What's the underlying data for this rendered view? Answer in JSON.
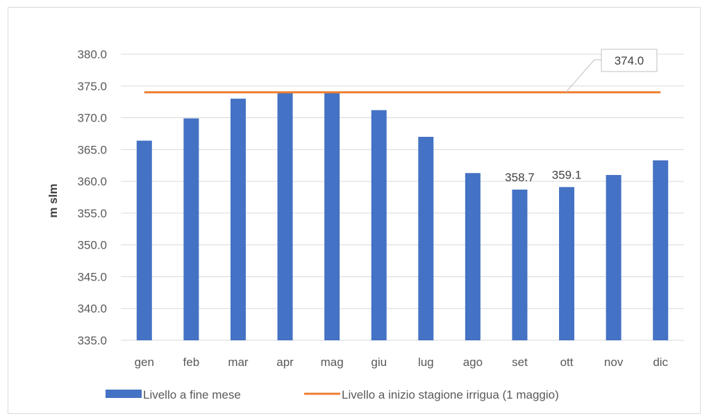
{
  "chart_data": {
    "type": "bar",
    "categories": [
      "gen",
      "feb",
      "mar",
      "apr",
      "mag",
      "giu",
      "lug",
      "ago",
      "set",
      "ott",
      "nov",
      "dic"
    ],
    "series": [
      {
        "name": "Livello a fine mese",
        "type": "bar",
        "color": "#4472c4",
        "values": [
          366.4,
          369.9,
          373.0,
          374.0,
          374.0,
          371.2,
          367.0,
          361.3,
          358.7,
          359.1,
          361.0,
          363.3
        ]
      },
      {
        "name": "Livello a inizio stagione irrigua (1 maggio)",
        "type": "line",
        "color": "#ed7d31",
        "values": [
          374.0,
          374.0,
          374.0,
          374.0,
          374.0,
          374.0,
          374.0,
          374.0,
          374.0,
          374.0,
          374.0,
          374.0
        ]
      }
    ],
    "data_labels": [
      {
        "series": "Livello a fine mese",
        "category": "set",
        "text": "358.7"
      },
      {
        "series": "Livello a fine mese",
        "category": "ott",
        "text": "359.1"
      },
      {
        "series": "Livello a inizio stagione irrigua (1 maggio)",
        "text": "374.0",
        "style": "callout"
      }
    ],
    "ylabel": "m slm",
    "xlabel": "",
    "title": "",
    "ylim": [
      335.0,
      380.0
    ],
    "yticks": [
      "335.0",
      "340.0",
      "345.0",
      "350.0",
      "355.0",
      "360.0",
      "365.0",
      "370.0",
      "375.0",
      "380.0"
    ],
    "grid": true,
    "legend_position": "bottom"
  }
}
